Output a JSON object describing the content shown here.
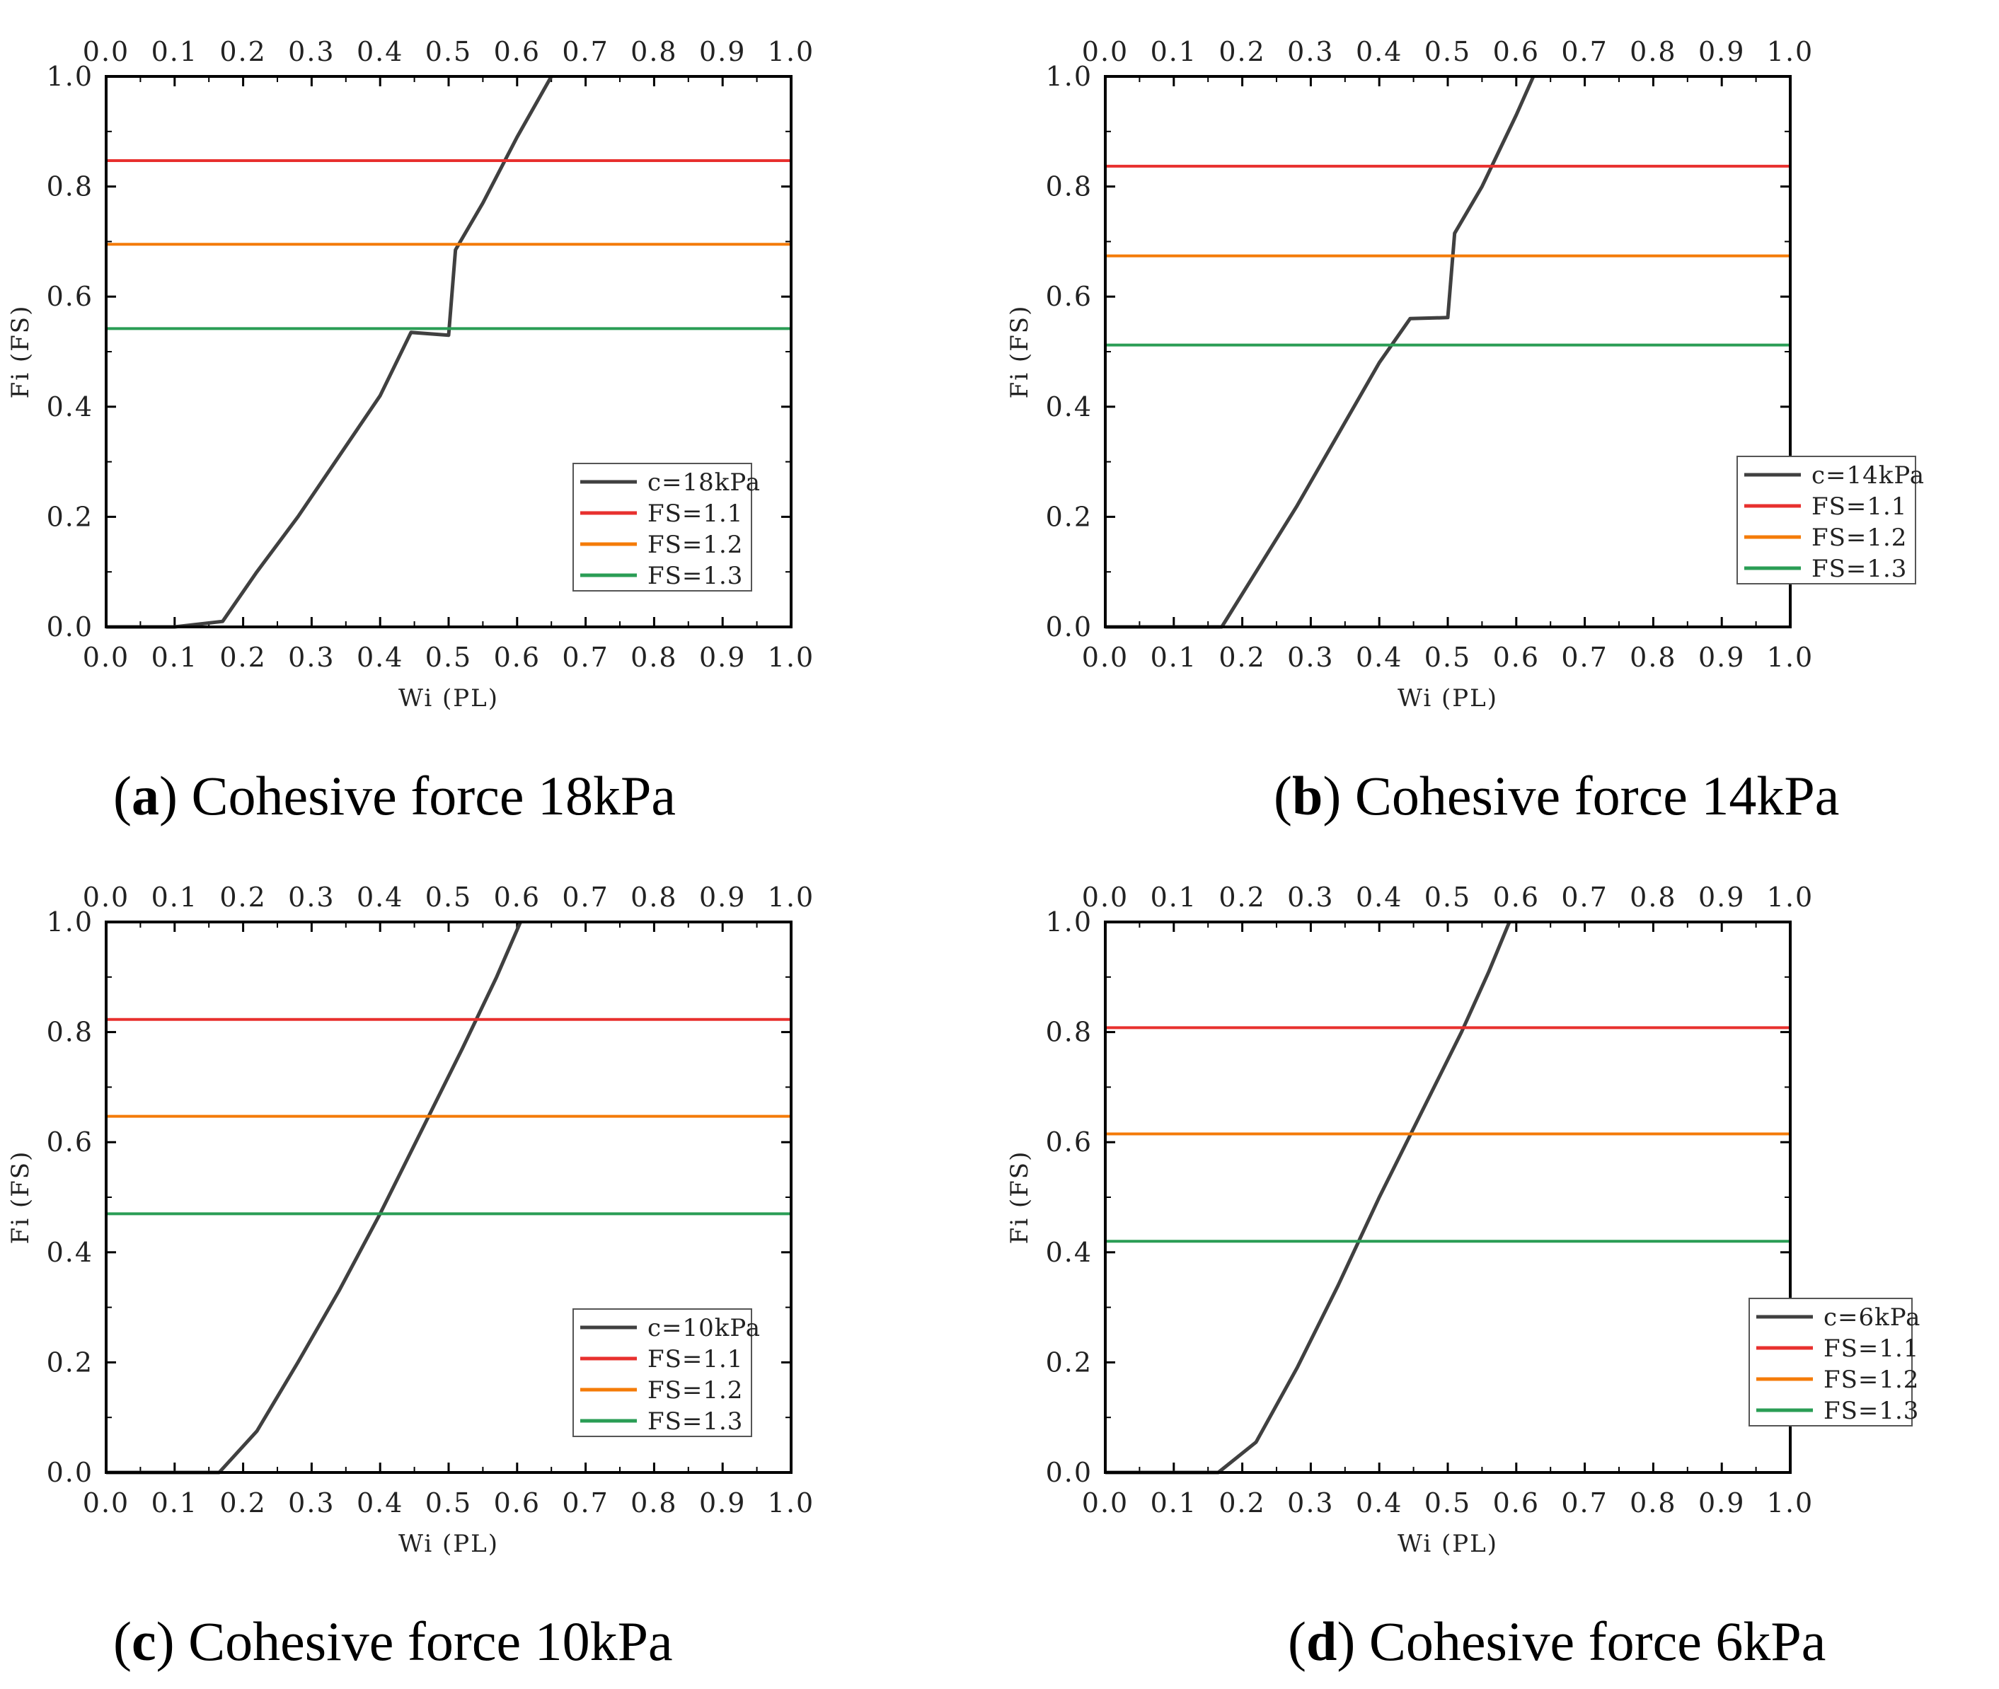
{
  "chart_data": [
    {
      "type": "line",
      "panel": "a",
      "caption_letter": "a",
      "caption_text": "Cohesive force 18kPa",
      "xlabel": "Wi (PL)",
      "ylabel": "Fi (FS)",
      "xlim": [
        0,
        1
      ],
      "ylim": [
        0,
        1
      ],
      "x_ticks": [
        "0.0",
        "0.1",
        "0.2",
        "0.3",
        "0.4",
        "0.5",
        "0.6",
        "0.7",
        "0.8",
        "0.9",
        "1.0"
      ],
      "y_ticks": [
        "0.0",
        "0.2",
        "0.4",
        "0.6",
        "0.8",
        "1.0"
      ],
      "series": [
        {
          "name": "c=18kPa",
          "color": "#404040",
          "points": [
            [
              0,
              0
            ],
            [
              0.1,
              0
            ],
            [
              0.17,
              0.01
            ],
            [
              0.22,
              0.1
            ],
            [
              0.28,
              0.2
            ],
            [
              0.34,
              0.31
            ],
            [
              0.4,
              0.42
            ],
            [
              0.445,
              0.535
            ],
            [
              0.5,
              0.53
            ],
            [
              0.51,
              0.685
            ],
            [
              0.55,
              0.77
            ],
            [
              0.6,
              0.89
            ],
            [
              0.65,
              1.0
            ]
          ]
        },
        {
          "name": "FS=1.1",
          "color": "#e8302e",
          "y": 0.847
        },
        {
          "name": "FS=1.2",
          "color": "#f47b08",
          "y": 0.695
        },
        {
          "name": "FS=1.3",
          "color": "#2a9d55",
          "y": 0.542
        }
      ]
    },
    {
      "type": "line",
      "panel": "b",
      "caption_letter": "b",
      "caption_text": "Cohesive force 14kPa",
      "xlabel": "Wi (PL)",
      "ylabel": "Fi (FS)",
      "xlim": [
        0,
        1
      ],
      "ylim": [
        0,
        1
      ],
      "x_ticks": [
        "0.0",
        "0.1",
        "0.2",
        "0.3",
        "0.4",
        "0.5",
        "0.6",
        "0.7",
        "0.8",
        "0.9",
        "1.0"
      ],
      "y_ticks": [
        "0.0",
        "0.2",
        "0.4",
        "0.6",
        "0.8",
        "1.0"
      ],
      "series": [
        {
          "name": "c=14kPa",
          "color": "#404040",
          "points": [
            [
              0,
              0
            ],
            [
              0.17,
              0
            ],
            [
              0.22,
              0.1
            ],
            [
              0.28,
              0.22
            ],
            [
              0.34,
              0.35
            ],
            [
              0.4,
              0.48
            ],
            [
              0.445,
              0.56
            ],
            [
              0.5,
              0.562
            ],
            [
              0.51,
              0.715
            ],
            [
              0.55,
              0.8
            ],
            [
              0.6,
              0.93
            ],
            [
              0.625,
              1.0
            ]
          ]
        },
        {
          "name": "FS=1.1",
          "color": "#e8302e",
          "y": 0.837
        },
        {
          "name": "FS=1.2",
          "color": "#f47b08",
          "y": 0.674
        },
        {
          "name": "FS=1.3",
          "color": "#2a9d55",
          "y": 0.512
        }
      ]
    },
    {
      "type": "line",
      "panel": "c",
      "caption_letter": "c",
      "caption_text": "Cohesive force 10kPa",
      "xlabel": "Wi (PL)",
      "ylabel": "Fi (FS)",
      "xlim": [
        0,
        1
      ],
      "ylim": [
        0,
        1
      ],
      "x_ticks": [
        "0.0",
        "0.1",
        "0.2",
        "0.3",
        "0.4",
        "0.5",
        "0.6",
        "0.7",
        "0.8",
        "0.9",
        "1.0"
      ],
      "y_ticks": [
        "0.0",
        "0.2",
        "0.4",
        "0.6",
        "0.8",
        "1.0"
      ],
      "series": [
        {
          "name": "c=10kPa",
          "color": "#404040",
          "points": [
            [
              0,
              0
            ],
            [
              0.165,
              0
            ],
            [
              0.22,
              0.075
            ],
            [
              0.28,
              0.2
            ],
            [
              0.34,
              0.33
            ],
            [
              0.4,
              0.47
            ],
            [
              0.46,
              0.62
            ],
            [
              0.52,
              0.77
            ],
            [
              0.57,
              0.9
            ],
            [
              0.605,
              1.0
            ]
          ]
        },
        {
          "name": "FS=1.1",
          "color": "#e8302e",
          "y": 0.823
        },
        {
          "name": "FS=1.2",
          "color": "#f47b08",
          "y": 0.647
        },
        {
          "name": "FS=1.3",
          "color": "#2a9d55",
          "y": 0.47
        }
      ]
    },
    {
      "type": "line",
      "panel": "d",
      "caption_letter": "d",
      "caption_text": "Cohesive force 6kPa",
      "xlabel": "Wi (PL)",
      "ylabel": "Fi (FS)",
      "xlim": [
        0,
        1
      ],
      "ylim": [
        0,
        1
      ],
      "x_ticks": [
        "0.0",
        "0.1",
        "0.2",
        "0.3",
        "0.4",
        "0.5",
        "0.6",
        "0.7",
        "0.8",
        "0.9",
        "1.0"
      ],
      "y_ticks": [
        "0.0",
        "0.2",
        "0.4",
        "0.6",
        "0.8",
        "1.0"
      ],
      "series": [
        {
          "name": "c=6kPa",
          "color": "#404040",
          "points": [
            [
              0,
              0
            ],
            [
              0.165,
              0
            ],
            [
              0.22,
              0.055
            ],
            [
              0.28,
              0.19
            ],
            [
              0.34,
              0.34
            ],
            [
              0.4,
              0.5
            ],
            [
              0.46,
              0.65
            ],
            [
              0.52,
              0.8
            ],
            [
              0.56,
              0.91
            ],
            [
              0.59,
              1.0
            ]
          ]
        },
        {
          "name": "FS=1.1",
          "color": "#e8302e",
          "y": 0.808
        },
        {
          "name": "FS=1.2",
          "color": "#f47b08",
          "y": 0.615
        },
        {
          "name": "FS=1.3",
          "color": "#2a9d55",
          "y": 0.42
        }
      ]
    }
  ]
}
